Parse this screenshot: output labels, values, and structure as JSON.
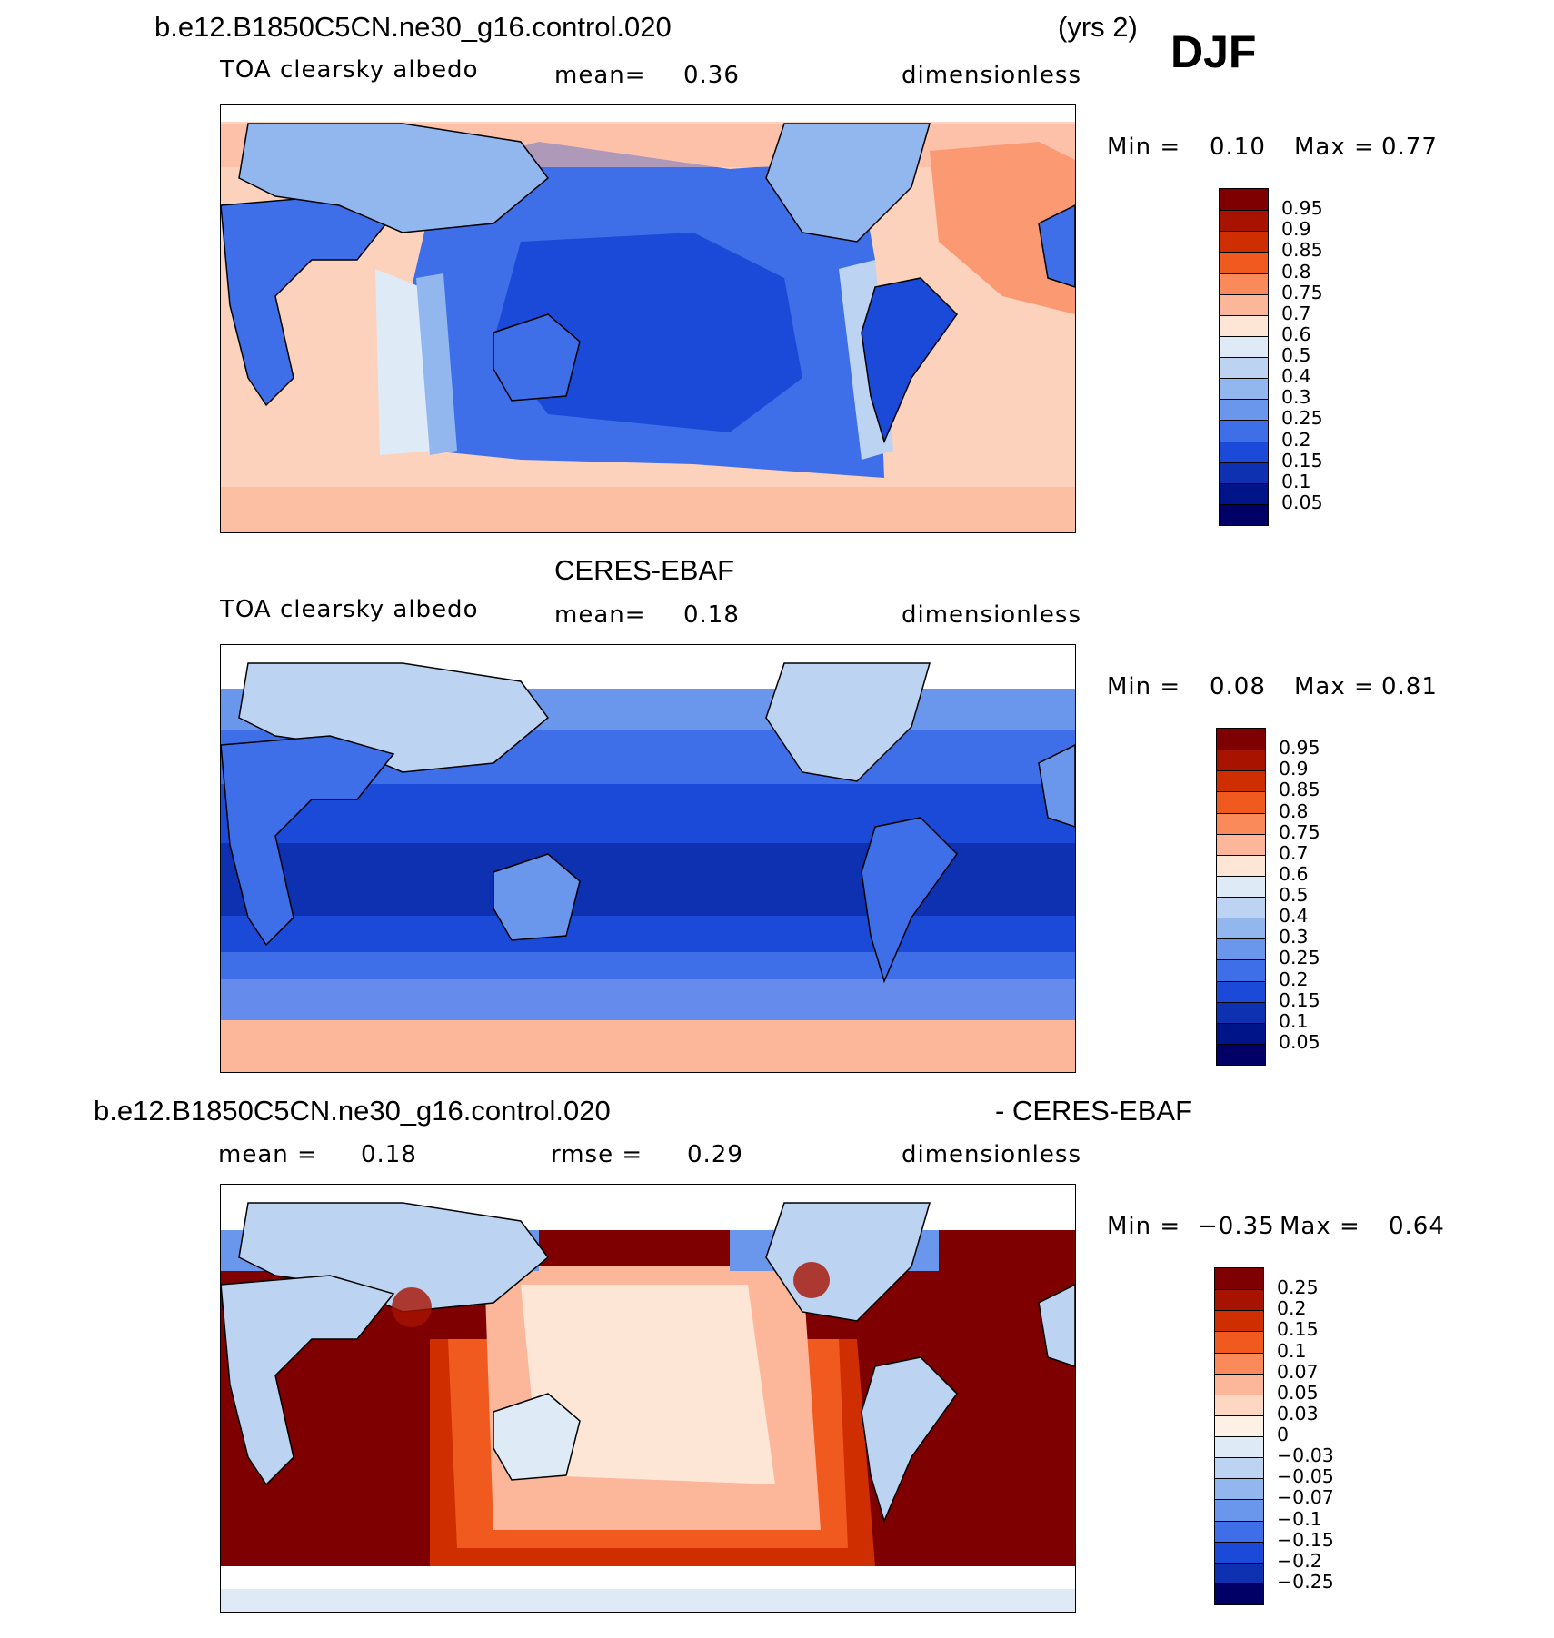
{
  "header": {
    "case_name": "b.e12.B1850C5CN.ne30_g16.control.020",
    "years": "(yrs 2)",
    "season": "DJF"
  },
  "panels": [
    {
      "id": "model",
      "heading": "",
      "variable": "TOA clearsky albedo",
      "mean_label": "mean=",
      "mean_value": "0.36",
      "units": "dimensionless",
      "min_label": "Min =",
      "min_value": "0.10",
      "max_label": "Max =",
      "max_value": "0.77",
      "levels": [
        "0.95",
        "0.9",
        "0.85",
        "0.8",
        "0.75",
        "0.7",
        "0.6",
        "0.5",
        "0.4",
        "0.3",
        "0.25",
        "0.2",
        "0.15",
        "0.1",
        "0.05"
      ]
    },
    {
      "id": "obs",
      "heading": "CERES-EBAF",
      "variable": "TOA clearsky albedo",
      "mean_label": "mean=",
      "mean_value": "0.18",
      "units": "dimensionless",
      "min_label": "Min =",
      "min_value": "0.08",
      "max_label": "Max =",
      "max_value": "0.81",
      "levels": [
        "0.95",
        "0.9",
        "0.85",
        "0.8",
        "0.75",
        "0.7",
        "0.6",
        "0.5",
        "0.4",
        "0.3",
        "0.25",
        "0.2",
        "0.15",
        "0.1",
        "0.05"
      ]
    },
    {
      "id": "diff",
      "heading_left": "b.e12.B1850C5CN.ne30_g16.control.020",
      "heading_right": "- CERES-EBAF",
      "mean_label": "mean =",
      "mean_value": "0.18",
      "rmse_label": "rmse =",
      "rmse_value": "0.29",
      "units": "dimensionless",
      "min_label": "Min =",
      "min_value": "−0.35",
      "max_label": "Max =",
      "max_value": "0.64",
      "levels": [
        "0.25",
        "0.2",
        "0.15",
        "0.1",
        "0.07",
        "0.05",
        "0.03",
        "0",
        "−0.03",
        "−0.05",
        "−0.07",
        "−0.1",
        "−0.15",
        "−0.2",
        "−0.25"
      ]
    }
  ],
  "colors": {
    "albedo_scale": [
      "#7f0000",
      "#a81300",
      "#cf2e00",
      "#f05a1e",
      "#fb8a5a",
      "#fcb699",
      "#fde6d6",
      "#deebf7",
      "#bcd3f2",
      "#92b6ee",
      "#6a97ec",
      "#3e6fe8",
      "#1c4ad8",
      "#0d31b0",
      "#00148a",
      "#000066"
    ],
    "diff_scale": [
      "#7f0000",
      "#a81300",
      "#cf2e00",
      "#f05a1e",
      "#fb8a5a",
      "#fcb699",
      "#fdd7c2",
      "#fff0e6",
      "#deebf7",
      "#bcd3f2",
      "#92b6ee",
      "#6a97ec",
      "#3e6fe8",
      "#1c4ad8",
      "#0d31b0",
      "#000066"
    ],
    "land_outline": "#000000"
  }
}
